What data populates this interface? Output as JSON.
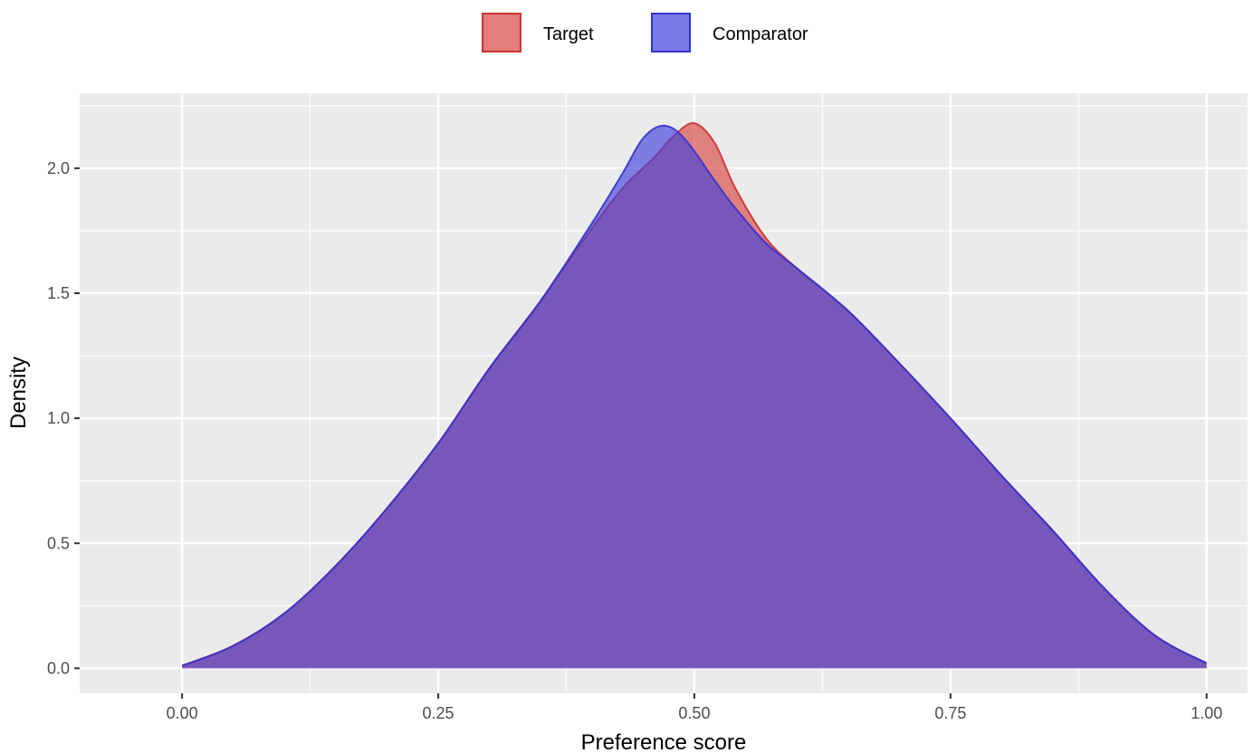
{
  "chart_data": {
    "type": "area",
    "xlabel": "Preference score",
    "ylabel": "Density",
    "xlim": [
      -0.1,
      1.04
    ],
    "ylim": [
      -0.1,
      2.3
    ],
    "x_ticks": [
      0.0,
      0.25,
      0.5,
      0.75,
      1.0
    ],
    "x_tick_labels": [
      "0.00",
      "0.25",
      "0.50",
      "0.75",
      "1.00"
    ],
    "y_ticks": [
      0.0,
      0.5,
      1.0,
      1.5,
      2.0
    ],
    "y_tick_labels": [
      "0.0",
      "0.5",
      "1.0",
      "1.5",
      "2.0"
    ],
    "grid": true,
    "legend_position": "top",
    "series": [
      {
        "name": "Target",
        "fill": "#d9534f",
        "stroke": "#cc3333",
        "x": [
          0.0,
          0.05,
          0.1,
          0.15,
          0.2,
          0.25,
          0.3,
          0.35,
          0.4,
          0.43,
          0.46,
          0.48,
          0.5,
          0.52,
          0.54,
          0.57,
          0.6,
          0.65,
          0.7,
          0.75,
          0.8,
          0.85,
          0.9,
          0.95,
          1.0
        ],
        "values": [
          0.01,
          0.09,
          0.22,
          0.41,
          0.64,
          0.9,
          1.2,
          1.47,
          1.76,
          1.92,
          2.04,
          2.13,
          2.18,
          2.1,
          1.92,
          1.72,
          1.6,
          1.43,
          1.22,
          1.0,
          0.77,
          0.55,
          0.32,
          0.13,
          0.02
        ]
      },
      {
        "name": "Comparator",
        "fill": "#4040dd",
        "stroke": "#3333cc",
        "x": [
          0.0,
          0.05,
          0.1,
          0.15,
          0.2,
          0.25,
          0.3,
          0.35,
          0.4,
          0.43,
          0.45,
          0.47,
          0.49,
          0.52,
          0.54,
          0.57,
          0.6,
          0.65,
          0.7,
          0.75,
          0.8,
          0.85,
          0.9,
          0.95,
          1.0
        ],
        "values": [
          0.01,
          0.09,
          0.22,
          0.41,
          0.64,
          0.9,
          1.2,
          1.47,
          1.78,
          1.98,
          2.12,
          2.17,
          2.12,
          1.95,
          1.84,
          1.7,
          1.6,
          1.43,
          1.22,
          1.0,
          0.77,
          0.55,
          0.32,
          0.13,
          0.02
        ]
      }
    ]
  }
}
